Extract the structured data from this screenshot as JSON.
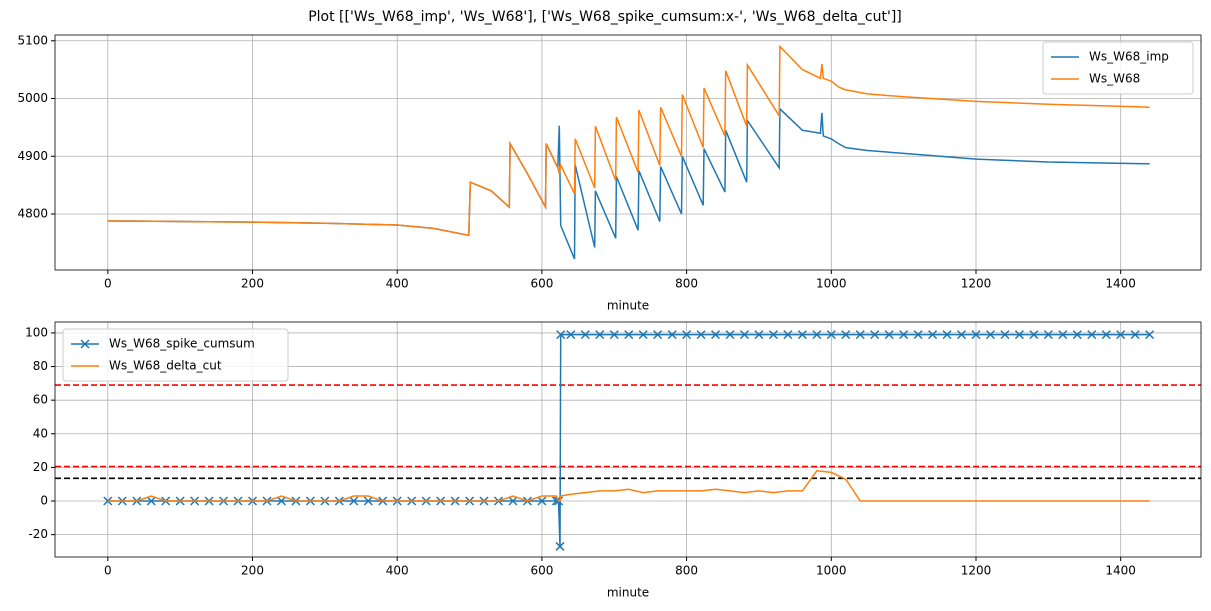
{
  "title": "Plot [['Ws_W68_imp', 'Ws_W68'], ['Ws_W68_spike_cumsum:x-', 'Ws_W68_delta_cut']]",
  "chart_data": [
    {
      "type": "line",
      "xlabel": "minute",
      "grid": true,
      "legend": "upper right",
      "xlim": [
        -73,
        1511
      ],
      "ylim": [
        4703,
        5110
      ],
      "xticks": [
        0,
        200,
        400,
        600,
        800,
        1000,
        1200,
        1400
      ],
      "yticks": [
        4800,
        4900,
        5000,
        5100
      ],
      "x": [
        0,
        100,
        200,
        300,
        400,
        450,
        499,
        501,
        530,
        555,
        556,
        580,
        605,
        606,
        622,
        624,
        626,
        645,
        646,
        673,
        674,
        702,
        703,
        733,
        734,
        763,
        764,
        793,
        794,
        823,
        824,
        853,
        854,
        883,
        884,
        928,
        929,
        960,
        985,
        987,
        989,
        1000,
        1010,
        1020,
        1050,
        1100,
        1200,
        1300,
        1440
      ],
      "series": [
        {
          "name": "Ws_W68_imp",
          "color": "#1f77b4",
          "values": [
            4788,
            4787,
            4786,
            4784,
            4781,
            4775,
            4763,
            4855,
            4840,
            4812,
            4922,
            4870,
            4812,
            4922,
            4880,
            4953,
            4780,
            4722,
            4885,
            4742,
            4840,
            4758,
            4865,
            4772,
            4875,
            4787,
            4882,
            4800,
            4900,
            4815,
            4913,
            4838,
            4945,
            4855,
            4962,
            4880,
            4982,
            4945,
            4940,
            4975,
            4935,
            4930,
            4922,
            4915,
            4910,
            4905,
            4895,
            4890,
            4887
          ]
        },
        {
          "name": "Ws_W68",
          "color": "#ff7f0e",
          "values": [
            4788,
            4787,
            4786,
            4784,
            4781,
            4775,
            4763,
            4855,
            4840,
            4812,
            4922,
            4870,
            4812,
            4922,
            4880,
            4870,
            4885,
            4835,
            4930,
            4845,
            4952,
            4858,
            4968,
            4872,
            4980,
            4884,
            4985,
            4900,
            5007,
            4915,
            5018,
            4935,
            5048,
            4952,
            5058,
            4970,
            5090,
            5050,
            5035,
            5060,
            5035,
            5030,
            5020,
            5015,
            5008,
            5003,
            4995,
            4990,
            4985
          ]
        }
      ]
    },
    {
      "type": "line",
      "xlabel": "minute",
      "grid": true,
      "legend": "upper left",
      "xlim": [
        -73,
        1511
      ],
      "ylim": [
        -33.3,
        106.5
      ],
      "xticks": [
        0,
        200,
        400,
        600,
        800,
        1000,
        1200,
        1400
      ],
      "yticks": [
        -20,
        0,
        20,
        40,
        60,
        80,
        100
      ],
      "hlines": [
        {
          "value": 69,
          "color": "#ff0000"
        },
        {
          "value": 20.5,
          "color": "#ff0000"
        },
        {
          "value": 13.5,
          "color": "#000000"
        }
      ],
      "x": [
        0,
        20,
        40,
        60,
        80,
        100,
        120,
        140,
        160,
        180,
        200,
        220,
        240,
        260,
        280,
        300,
        320,
        340,
        360,
        380,
        400,
        420,
        440,
        460,
        480,
        500,
        520,
        540,
        560,
        580,
        600,
        620,
        623,
        625,
        626,
        640,
        660,
        680,
        700,
        720,
        740,
        760,
        780,
        800,
        820,
        840,
        860,
        880,
        900,
        920,
        940,
        960,
        980,
        1000,
        1020,
        1040,
        1060,
        1080,
        1100,
        1120,
        1140,
        1160,
        1180,
        1200,
        1220,
        1240,
        1260,
        1280,
        1300,
        1320,
        1340,
        1360,
        1380,
        1400,
        1420,
        1440
      ],
      "series": [
        {
          "name": "Ws_W68_spike_cumsum",
          "color": "#1f77b4",
          "marker": "x",
          "values": [
            0,
            0,
            0,
            0,
            0,
            0,
            0,
            0,
            0,
            0,
            0,
            0,
            0,
            0,
            0,
            0,
            0,
            0,
            0,
            0,
            0,
            0,
            0,
            0,
            0,
            0,
            0,
            0,
            0,
            0,
            0,
            0,
            0,
            -27,
            99,
            99,
            99,
            99,
            99,
            99,
            99,
            99,
            99,
            99,
            99,
            99,
            99,
            99,
            99,
            99,
            99,
            99,
            99,
            99,
            99,
            99,
            99,
            99,
            99,
            99,
            99,
            99,
            99,
            99,
            99,
            99,
            99,
            99,
            99,
            99,
            99,
            99,
            99,
            99,
            99,
            99
          ]
        },
        {
          "name": "Ws_W68_delta_cut",
          "color": "#ff7f0e",
          "values": [
            0,
            0,
            0,
            3,
            0,
            0,
            0,
            0,
            0,
            0,
            0,
            0,
            3,
            0,
            0,
            0,
            0,
            3,
            3,
            0,
            0,
            0,
            0,
            0,
            0,
            0,
            0,
            0,
            3,
            0,
            3,
            3,
            0,
            0,
            3,
            4,
            5,
            6,
            6,
            7,
            5,
            6,
            6,
            6,
            6,
            7,
            6,
            5,
            6,
            5,
            6,
            6,
            18,
            17,
            13,
            0,
            0,
            0,
            0,
            0,
            0,
            0,
            0,
            0,
            0,
            0,
            0,
            0,
            0,
            0,
            0,
            0,
            0,
            0,
            0,
            0
          ]
        }
      ]
    }
  ]
}
